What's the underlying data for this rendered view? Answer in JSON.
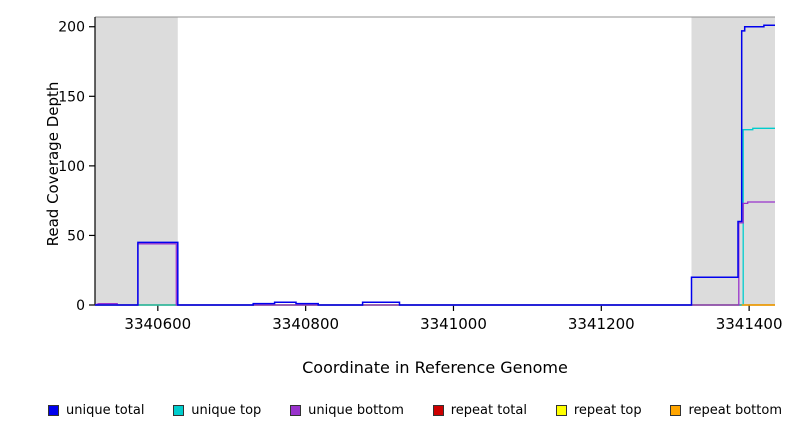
{
  "chart_data": {
    "type": "line",
    "title": "",
    "xlabel": "Coordinate in Reference Genome",
    "ylabel": "Read Coverage Depth",
    "xlim": [
      3340515,
      3341435
    ],
    "ylim": [
      0,
      207
    ],
    "x_ticks": [
      3340600,
      3340800,
      3341000,
      3341200,
      3341400
    ],
    "y_ticks": [
      0,
      50,
      100,
      150,
      200
    ],
    "grid": false,
    "legend_position": "bottom",
    "highlight_color": "#DCDCDC",
    "top_border_color": "#909090",
    "highlight_regions": [
      {
        "from": 3340515,
        "to": 3340627
      },
      {
        "from": 3341322,
        "to": 3341435
      }
    ],
    "series": [
      {
        "name": "repeat total",
        "color": "#CD0000",
        "width": 1.2,
        "points": [
          [
            3340515,
            0
          ],
          [
            3341435,
            0
          ]
        ]
      },
      {
        "name": "repeat top",
        "color": "#FFFF00",
        "width": 1.2,
        "points": [
          [
            3340515,
            0
          ],
          [
            3341435,
            0
          ]
        ]
      },
      {
        "name": "unique top",
        "color": "#00CDCD",
        "width": 1.3,
        "points": [
          [
            3340515,
            0
          ],
          [
            3341392,
            0
          ],
          [
            3341392,
            126
          ],
          [
            3341405,
            126
          ],
          [
            3341405,
            127
          ],
          [
            3341435,
            127
          ]
        ]
      },
      {
        "name": "unique bottom",
        "color": "#9932CC",
        "width": 1.3,
        "points": [
          [
            3340515,
            0
          ],
          [
            3340520,
            1
          ],
          [
            3340545,
            1
          ],
          [
            3340545,
            0
          ],
          [
            3340573,
            0
          ],
          [
            3340573,
            44
          ],
          [
            3340625,
            44
          ],
          [
            3340625,
            0
          ],
          [
            3341386,
            0
          ],
          [
            3341386,
            59
          ],
          [
            3341392,
            59
          ],
          [
            3341392,
            73
          ],
          [
            3341398,
            73
          ],
          [
            3341398,
            74
          ],
          [
            3341435,
            74
          ]
        ]
      },
      {
        "name": "unique total",
        "color": "#0000EE",
        "width": 1.5,
        "points": [
          [
            3340515,
            0
          ],
          [
            3340573,
            0
          ],
          [
            3340573,
            45
          ],
          [
            3340627,
            45
          ],
          [
            3340627,
            0
          ],
          [
            3340729,
            0
          ],
          [
            3340729,
            1
          ],
          [
            3340758,
            1
          ],
          [
            3340758,
            2
          ],
          [
            3340787,
            2
          ],
          [
            3340787,
            1
          ],
          [
            3340817,
            1
          ],
          [
            3340817,
            0
          ],
          [
            3340877,
            0
          ],
          [
            3340877,
            2
          ],
          [
            3340927,
            2
          ],
          [
            3340927,
            0
          ],
          [
            3341322,
            0
          ],
          [
            3341322,
            20
          ],
          [
            3341385,
            20
          ],
          [
            3341385,
            60
          ],
          [
            3341390,
            60
          ],
          [
            3341390,
            197
          ],
          [
            3341394,
            197
          ],
          [
            3341394,
            200
          ],
          [
            3341420,
            200
          ],
          [
            3341420,
            201
          ],
          [
            3341435,
            201
          ]
        ]
      },
      {
        "name": "repeat bottom",
        "color": "#FFA500",
        "width": 1.3,
        "points": [
          [
            3341390,
            0
          ],
          [
            3341435,
            0
          ]
        ]
      }
    ],
    "legend": [
      {
        "label": "unique total",
        "color": "#0000EE"
      },
      {
        "label": "unique top",
        "color": "#00CDCD"
      },
      {
        "label": "unique bottom",
        "color": "#9932CC"
      },
      {
        "label": "repeat total",
        "color": "#CD0000"
      },
      {
        "label": "repeat top",
        "color": "#FFFF00"
      },
      {
        "label": "repeat bottom",
        "color": "#FFA500"
      }
    ]
  }
}
